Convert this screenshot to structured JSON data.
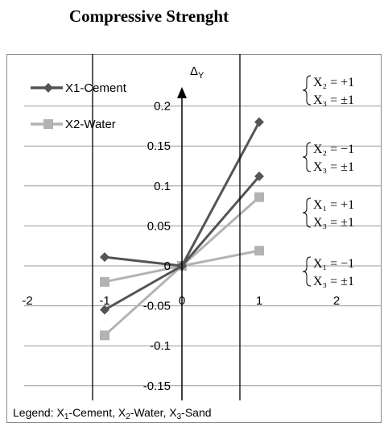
{
  "chart_data": {
    "type": "line",
    "title": "Compressive Strenght",
    "ylabel": "Δ",
    "ylabel_sub": "Y",
    "xlim": [
      -2,
      2
    ],
    "ylim": [
      -0.15,
      0.2
    ],
    "x_ticks": [
      "-2",
      "-1",
      "0",
      "1",
      "2"
    ],
    "y_ticks": [
      "0.2",
      "0.15",
      "0.1",
      "0.05",
      "0",
      "-0.05",
      "-0.1",
      "-0.15"
    ],
    "grid": true,
    "legend_position": "top-left",
    "legend": [
      {
        "label": "X1-Cement",
        "color": "#555555",
        "marker": "diamond"
      },
      {
        "label": "X2-Water",
        "color": "#b3b3b3",
        "marker": "square"
      }
    ],
    "series": [
      {
        "name": "X1-Cement",
        "color": "#555555",
        "marker": "diamond",
        "x": [
          -1,
          0,
          1
        ],
        "y": [
          0.011,
          0.0,
          0.18
        ]
      },
      {
        "name": "X1-Cement",
        "color": "#555555",
        "marker": "diamond",
        "x": [
          -1,
          0,
          1
        ],
        "y": [
          -0.055,
          0.0,
          0.112
        ]
      },
      {
        "name": "X2-Water",
        "color": "#b3b3b3",
        "marker": "square",
        "x": [
          -1,
          0,
          1
        ],
        "y": [
          -0.02,
          0.0,
          0.086
        ]
      },
      {
        "name": "X2-Water",
        "color": "#b3b3b3",
        "marker": "square",
        "x": [
          -1,
          0,
          1
        ],
        "y": [
          -0.087,
          0.0,
          0.019
        ]
      }
    ],
    "annotations": [
      {
        "line1": "X₂ = +1",
        "line2": "X₃ = ±1"
      },
      {
        "line1": "X₂ = −1",
        "line2": "X₃ = ±1"
      },
      {
        "line1": "X₁ = +1",
        "line2": "X₃ = ±1"
      },
      {
        "line1": "X₁ = −1",
        "line2": "X₃ = ±1"
      }
    ],
    "footer_legend": {
      "prefix": "Legend: X",
      "s1": "1",
      "t1": "-Cement, X",
      "s2": "2",
      "t2": "-Water, X",
      "s3": "3",
      "t3": "-Sand"
    }
  }
}
